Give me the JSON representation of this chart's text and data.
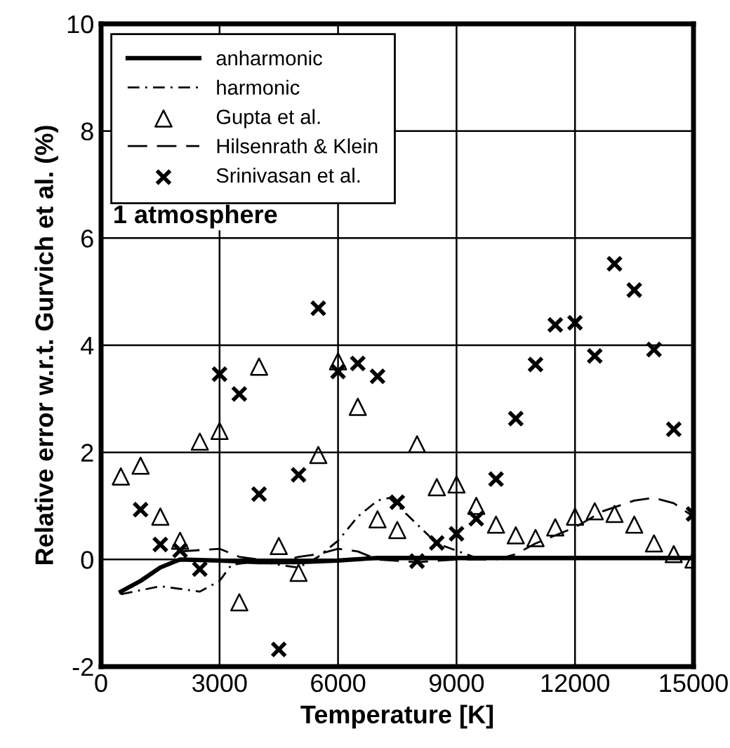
{
  "chart_data": {
    "type": "line",
    "xlabel": "Temperature [K]",
    "ylabel": "Relative error w.r.t. Gurvich et al. (%)",
    "xlim": [
      0,
      15000
    ],
    "xticks": [
      0,
      3000,
      6000,
      9000,
      12000,
      15000
    ],
    "ylim": [
      -2,
      10
    ],
    "yticks": [
      -2,
      0,
      2,
      4,
      6,
      8,
      10
    ],
    "grid": true,
    "legend": "top left",
    "annotations": [
      "1 atmosphere"
    ],
    "series": [
      {
        "name": "anharmonic",
        "color": "#000000",
        "line_style": "solid",
        "marker": "none",
        "x": [
          500,
          1000,
          1500,
          2000,
          3000,
          4000,
          5000,
          6000,
          7000,
          9000,
          12000,
          15000
        ],
        "values": [
          -0.6,
          -0.4,
          -0.15,
          0,
          -0.02,
          -0.05,
          -0.05,
          -0.02,
          0.03,
          0.03,
          0.03,
          0.03
        ]
      },
      {
        "name": "harmonic",
        "color": "#000000",
        "line_style": "dashdot",
        "marker": "none",
        "x": [
          500,
          1500,
          2500,
          3000,
          3300,
          4000,
          4500,
          5000,
          5500,
          6000,
          6500,
          7000,
          7300,
          7800,
          8500,
          9500,
          10500,
          15000
        ],
        "values": [
          -0.65,
          -0.5,
          -0.6,
          -0.4,
          -0.1,
          -0.03,
          -0.1,
          -0.15,
          0.05,
          0.35,
          0.8,
          1.1,
          1.15,
          0.8,
          0.3,
          0.03,
          0.03,
          0.03
        ]
      },
      {
        "name": "Gupta et al.",
        "type": "scatter",
        "color": "#000000",
        "marker": "triangle",
        "x": [
          500,
          1000,
          1500,
          2000,
          2500,
          3000,
          3500,
          4000,
          4500,
          5000,
          5500,
          6000,
          6500,
          7000,
          7500,
          8000,
          8500,
          9000,
          9500,
          10000,
          10500,
          11000,
          11500,
          12000,
          12500,
          13000,
          13500,
          14000,
          14500,
          15000
        ],
        "values": [
          1.55,
          1.75,
          0.8,
          0.35,
          2.2,
          2.4,
          -0.8,
          3.6,
          0.25,
          -0.25,
          1.95,
          3.7,
          2.85,
          0.75,
          0.55,
          2.15,
          1.35,
          1.4,
          1.0,
          0.65,
          0.45,
          0.4,
          0.6,
          0.8,
          0.9,
          0.85,
          0.65,
          0.3,
          0.1,
          0
        ]
      },
      {
        "name": "Hilsenrath & Klein",
        "color": "#000000",
        "line_style": "dashed",
        "marker": "none",
        "x": [
          2000,
          3000,
          3500,
          4500,
          5000,
          5500,
          6000,
          6500,
          7000,
          8000,
          9000,
          10000,
          10500,
          11000,
          12000,
          12700,
          13500,
          14000,
          14500,
          15000
        ],
        "values": [
          0.15,
          0.2,
          0.05,
          -0.05,
          0.05,
          0.1,
          0.2,
          0.15,
          0,
          -0.05,
          0,
          0,
          0.1,
          0.3,
          0.6,
          0.9,
          1.1,
          1.15,
          1.05,
          0.8
        ]
      },
      {
        "name": "Srinivasan et al.",
        "type": "scatter",
        "color": "#000000",
        "marker": "cross",
        "x": [
          1000,
          1500,
          2000,
          2500,
          3000,
          3500,
          4000,
          4500,
          5000,
          5500,
          6000,
          6500,
          7000,
          7500,
          8000,
          8500,
          9000,
          9500,
          10000,
          10500,
          11000,
          11500,
          12000,
          12500,
          13000,
          13500,
          14000,
          14500,
          15000
        ],
        "values": [
          0.93,
          0.28,
          0.17,
          -0.18,
          3.46,
          3.09,
          1.22,
          -1.68,
          1.58,
          4.69,
          3.51,
          3.66,
          3.42,
          1.07,
          -0.03,
          0.31,
          0.48,
          0.76,
          1.5,
          2.63,
          3.64,
          4.38,
          4.42,
          3.8,
          5.52,
          5.03,
          3.92,
          2.43,
          0.85
        ]
      }
    ]
  }
}
